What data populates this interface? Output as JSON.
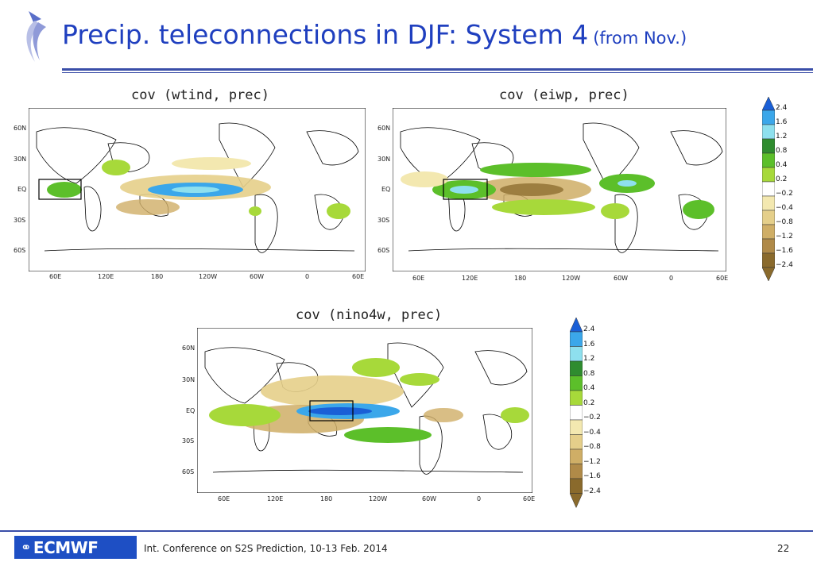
{
  "slide": {
    "title": "Precip. teleconnections in DJF: System 4",
    "subtitle": "(from Nov.)",
    "footer": "Int. Conference on S2S Prediction, 10-13 Feb. 2014",
    "page_number": "22",
    "logo_text": "ECMWF"
  },
  "maps": [
    {
      "title": "cov (wtind, prec)"
    },
    {
      "title": "cov (eiwp, prec)"
    },
    {
      "title": "cov (nino4w, prec)"
    }
  ],
  "axes": {
    "lat_labels": [
      "60N",
      "30N",
      "EQ",
      "30S",
      "60S"
    ],
    "lon_labels": [
      "60E",
      "120E",
      "180",
      "120W",
      "60W",
      "0",
      "60E"
    ]
  },
  "colorbar": {
    "labels": [
      "2.4",
      "1.6",
      "1.2",
      "0.8",
      "0.4",
      "0.2",
      "−0.2",
      "−0.4",
      "−0.8",
      "−1.2",
      "−1.6",
      "−2.4"
    ],
    "colors": [
      "#1a5fd6",
      "#3ba7ea",
      "#8ee0ee",
      "#2f8c2f",
      "#5cbf2a",
      "#a7d93a",
      "#ffffff",
      "#f3e8b0",
      "#e5cf8a",
      "#cfae66",
      "#b08a48",
      "#8a6a2c"
    ]
  },
  "colors": {
    "title_blue": "#1f3fbf",
    "rule_blue": "#3a4ea8",
    "logo_blue": "#1e4fc4"
  }
}
